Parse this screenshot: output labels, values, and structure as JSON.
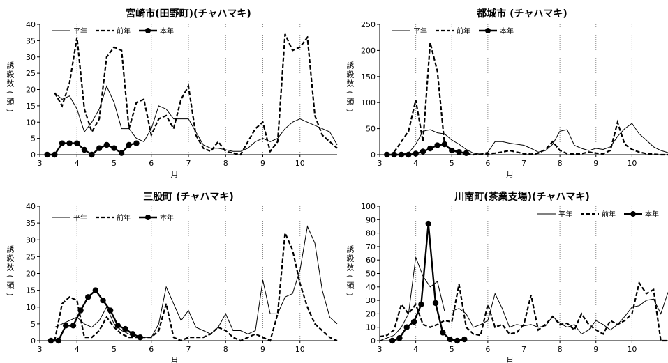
{
  "chart_data": [
    {
      "type": "line",
      "title": "宮崎市(田野町)(チャハマキ)",
      "xlabel": "月",
      "ylabel": "誘殺数(頭)",
      "xlim": [
        3,
        11
      ],
      "ylim": [
        0,
        40
      ],
      "xticks": [
        3,
        4,
        5,
        6,
        7,
        8,
        9,
        10
      ],
      "yticks": [
        0,
        5,
        10,
        15,
        20,
        25,
        30,
        35,
        40
      ],
      "grid": "vertical-dotted",
      "legend": "top-left",
      "series": [
        {
          "name": "平年",
          "style": "thin",
          "x": [
            3.4,
            3.6,
            3.8,
            4.0,
            4.2,
            4.4,
            4.6,
            4.8,
            5.0,
            5.2,
            5.4,
            5.6,
            5.8,
            6.0,
            6.2,
            6.4,
            6.6,
            6.8,
            7.0,
            7.2,
            7.4,
            7.6,
            7.8,
            8.0,
            8.2,
            8.4,
            8.6,
            8.8,
            9.0,
            9.2,
            9.4,
            9.6,
            9.8,
            10.0,
            10.2,
            10.4,
            10.6,
            10.8,
            11.0
          ],
          "y": [
            19,
            17,
            18,
            14,
            7,
            10,
            14,
            21,
            16,
            8,
            8,
            5,
            4,
            8,
            15,
            14,
            11,
            11,
            11,
            7,
            3,
            2,
            2,
            1.5,
            1,
            1,
            2,
            4,
            5,
            4,
            5,
            8,
            10,
            11,
            10,
            9,
            8,
            7,
            3
          ]
        },
        {
          "name": "前年",
          "style": "dashed",
          "x": [
            3.4,
            3.6,
            3.8,
            4.0,
            4.2,
            4.4,
            4.6,
            4.8,
            5.0,
            5.2,
            5.4,
            5.6,
            5.8,
            6.0,
            6.2,
            6.4,
            6.6,
            6.8,
            7.0,
            7.2,
            7.4,
            7.6,
            7.8,
            8.0,
            8.2,
            8.4,
            8.6,
            8.8,
            9.0,
            9.2,
            9.4,
            9.6,
            9.8,
            10.0,
            10.2,
            10.4,
            10.6,
            10.8,
            11.0
          ],
          "y": [
            19,
            15,
            22,
            36,
            14,
            7,
            11,
            30,
            33,
            32,
            8,
            16,
            17,
            6,
            11,
            12,
            8,
            17,
            21,
            6,
            2,
            1,
            4,
            1,
            0.5,
            0,
            4,
            8,
            10,
            1,
            4,
            37,
            32,
            33,
            36,
            12,
            6,
            4,
            2
          ]
        },
        {
          "name": "本年",
          "style": "marker",
          "x": [
            3.2,
            3.4,
            3.6,
            3.8,
            4.0,
            4.2,
            4.4,
            4.6,
            4.8,
            5.0,
            5.2,
            5.4,
            5.6
          ],
          "y": [
            0,
            0,
            3.5,
            3.5,
            3.5,
            1.5,
            0,
            2,
            3,
            2,
            0.5,
            3,
            3.5
          ]
        }
      ]
    },
    {
      "type": "line",
      "title": "都城市 (チャハマキ)",
      "xlabel": "月",
      "ylabel": "誘殺数(頭)",
      "xlim": [
        3,
        11
      ],
      "ylim": [
        0,
        250
      ],
      "xticks": [
        3,
        4,
        5,
        6,
        7,
        8,
        9,
        10
      ],
      "yticks": [
        0,
        50,
        100,
        150,
        200,
        250
      ],
      "grid": "vertical-dotted",
      "legend": "top-left",
      "series": [
        {
          "name": "平年",
          "style": "thin",
          "x": [
            3.4,
            3.6,
            3.8,
            4.0,
            4.2,
            4.4,
            4.6,
            4.8,
            5.0,
            5.2,
            5.4,
            5.6,
            5.8,
            6.0,
            6.2,
            6.4,
            6.6,
            6.8,
            7.0,
            7.2,
            7.4,
            7.6,
            7.8,
            8.0,
            8.2,
            8.4,
            8.6,
            8.8,
            9.0,
            9.2,
            9.4,
            9.6,
            9.8,
            10.0,
            10.2,
            10.4,
            10.6,
            10.8,
            11.0
          ],
          "y": [
            0,
            1,
            3,
            20,
            45,
            48,
            42,
            40,
            28,
            20,
            10,
            3,
            1,
            5,
            25,
            25,
            22,
            20,
            18,
            12,
            5,
            8,
            20,
            45,
            48,
            18,
            12,
            8,
            12,
            10,
            15,
            35,
            50,
            60,
            40,
            28,
            15,
            8,
            4
          ]
        },
        {
          "name": "前年",
          "style": "dashed",
          "x": [
            3.4,
            3.6,
            3.8,
            4.0,
            4.2,
            4.4,
            4.6,
            4.8,
            5.0,
            5.2,
            5.4,
            5.6,
            5.8,
            6.0,
            6.2,
            6.4,
            6.6,
            6.8,
            7.0,
            7.2,
            7.4,
            7.6,
            7.8,
            8.0,
            8.2,
            8.4,
            8.6,
            8.8,
            9.0,
            9.2,
            9.4,
            9.6,
            9.8,
            10.0,
            10.2,
            10.4,
            10.6,
            10.8,
            11.0
          ],
          "y": [
            5,
            25,
            45,
            105,
            25,
            215,
            160,
            20,
            10,
            5,
            2,
            0,
            1,
            2,
            3,
            5,
            8,
            5,
            2,
            1,
            3,
            10,
            25,
            8,
            2,
            1,
            2,
            5,
            3,
            2,
            8,
            62,
            20,
            10,
            5,
            2,
            1,
            0,
            0
          ]
        },
        {
          "name": "本年",
          "style": "marker",
          "x": [
            3.2,
            3.4,
            3.6,
            3.8,
            4.0,
            4.2,
            4.4,
            4.6,
            4.8,
            5.0,
            5.2,
            5.4
          ],
          "y": [
            0,
            0,
            0,
            0,
            2,
            6,
            12,
            18,
            20,
            8,
            5,
            3
          ]
        }
      ]
    },
    {
      "type": "line",
      "title": "三股町 (チャハマキ)",
      "xlabel": "月",
      "ylabel": "誘殺数(頭)",
      "xlim": [
        3,
        11
      ],
      "ylim": [
        0,
        40
      ],
      "xticks": [
        3,
        4,
        5,
        6,
        7,
        8,
        9,
        10
      ],
      "yticks": [
        0,
        5,
        10,
        15,
        20,
        25,
        30,
        35,
        40
      ],
      "grid": "vertical-dotted",
      "legend": "top-left",
      "series": [
        {
          "name": "平年",
          "style": "thin",
          "x": [
            3.4,
            3.6,
            3.8,
            4.0,
            4.2,
            4.4,
            4.6,
            4.8,
            5.0,
            5.2,
            5.4,
            5.6,
            5.8,
            6.0,
            6.2,
            6.4,
            6.6,
            6.8,
            7.0,
            7.2,
            7.4,
            7.6,
            7.8,
            8.0,
            8.2,
            8.4,
            8.6,
            8.8,
            9.0,
            9.2,
            9.4,
            9.6,
            9.8,
            10.0,
            10.2,
            10.4,
            10.6,
            10.8,
            11.0
          ],
          "y": [
            4,
            5,
            6,
            7,
            5,
            4,
            6,
            10,
            5,
            3,
            2,
            1,
            1,
            1,
            5,
            16,
            11,
            6,
            9,
            4,
            3,
            2,
            4,
            8,
            3,
            3,
            2,
            3,
            18,
            8,
            8,
            13,
            14,
            21,
            34,
            29,
            15,
            7,
            5
          ]
        },
        {
          "name": "前年",
          "style": "dashed",
          "x": [
            3.4,
            3.6,
            3.8,
            4.0,
            4.2,
            4.4,
            4.6,
            4.8,
            5.0,
            5.2,
            5.4,
            5.6,
            5.8,
            6.0,
            6.2,
            6.4,
            6.6,
            6.8,
            7.0,
            7.2,
            7.4,
            7.6,
            7.8,
            8.0,
            8.2,
            8.4,
            8.6,
            8.8,
            9.0,
            9.2,
            9.4,
            9.6,
            9.8,
            10.0,
            10.2,
            10.4,
            10.6,
            10.8,
            11.0
          ],
          "y": [
            0,
            11,
            13,
            12,
            1,
            1,
            3,
            7,
            4,
            2,
            1,
            1,
            1,
            1,
            3,
            11,
            1,
            0,
            1,
            1,
            1,
            2,
            4,
            3,
            1,
            0,
            1,
            2,
            1,
            0,
            8,
            32,
            27,
            17,
            10,
            5,
            3,
            1,
            0
          ]
        },
        {
          "name": "本年",
          "style": "marker",
          "x": [
            3.3,
            3.5,
            3.7,
            3.9,
            4.1,
            4.3,
            4.5,
            4.7,
            4.9,
            5.1,
            5.3,
            5.5,
            5.7
          ],
          "y": [
            0,
            0,
            4.5,
            4.5,
            9,
            13,
            15,
            12,
            9,
            4.5,
            3.5,
            2,
            1
          ]
        }
      ]
    },
    {
      "type": "line",
      "title": "川南町(茶業支場)(チャハマキ)",
      "xlabel": "月",
      "ylabel": "誘殺数(頭)",
      "xlim": [
        3,
        11
      ],
      "ylim": [
        0,
        100
      ],
      "xticks": [
        3,
        4,
        5,
        6,
        7,
        8,
        9,
        10
      ],
      "yticks": [
        0,
        10,
        20,
        30,
        40,
        50,
        60,
        70,
        80,
        90,
        100
      ],
      "grid": "vertical-dotted",
      "legend": "top-right",
      "series": [
        {
          "name": "平年",
          "style": "thin",
          "x": [
            3.0,
            3.2,
            3.4,
            3.6,
            3.8,
            4.0,
            4.2,
            4.4,
            4.6,
            4.8,
            5.0,
            5.2,
            5.4,
            5.6,
            5.8,
            6.0,
            6.2,
            6.4,
            6.6,
            6.8,
            7.0,
            7.2,
            7.4,
            7.6,
            7.8,
            8.0,
            8.2,
            8.4,
            8.6,
            8.8,
            9.0,
            9.2,
            9.4,
            9.6,
            9.8,
            10.0,
            10.2,
            10.4,
            10.6,
            10.8,
            11.0
          ],
          "y": [
            0,
            2,
            4,
            10,
            20,
            62,
            48,
            40,
            44,
            22,
            22,
            24,
            20,
            10,
            12,
            15,
            35,
            24,
            10,
            12,
            11,
            12,
            10,
            11,
            18,
            13,
            10,
            12,
            5,
            8,
            15,
            12,
            8,
            12,
            18,
            25,
            26,
            30,
            31,
            20,
            36
          ]
        },
        {
          "name": "前年",
          "style": "dashed",
          "x": [
            3.0,
            3.2,
            3.4,
            3.6,
            3.8,
            4.0,
            4.2,
            4.4,
            4.6,
            4.8,
            5.0,
            5.2,
            5.4,
            5.6,
            5.8,
            6.0,
            6.2,
            6.4,
            6.6,
            6.8,
            7.0,
            7.2,
            7.4,
            7.6,
            7.8,
            8.0,
            8.2,
            8.4,
            8.6,
            8.8,
            9.0,
            9.2,
            9.4,
            9.6,
            9.8,
            10.0,
            10.2,
            10.4,
            10.6,
            10.8,
            11.0
          ],
          "y": [
            3,
            4,
            8,
            27,
            20,
            27,
            12,
            10,
            12,
            15,
            14,
            42,
            10,
            5,
            4,
            27,
            10,
            12,
            5,
            6,
            12,
            34,
            8,
            12,
            18,
            12,
            13,
            8,
            20,
            12,
            8,
            5,
            15,
            12,
            15,
            20,
            43,
            35,
            38,
            0,
            0
          ]
        },
        {
          "name": "本年",
          "style": "marker",
          "x": [
            3.35,
            3.55,
            3.75,
            3.95,
            4.15,
            4.35,
            4.55,
            4.75,
            4.95,
            5.15,
            5.35
          ],
          "y": [
            0,
            2,
            10,
            14,
            27,
            87,
            28,
            6,
            1,
            0,
            1
          ]
        }
      ]
    }
  ]
}
